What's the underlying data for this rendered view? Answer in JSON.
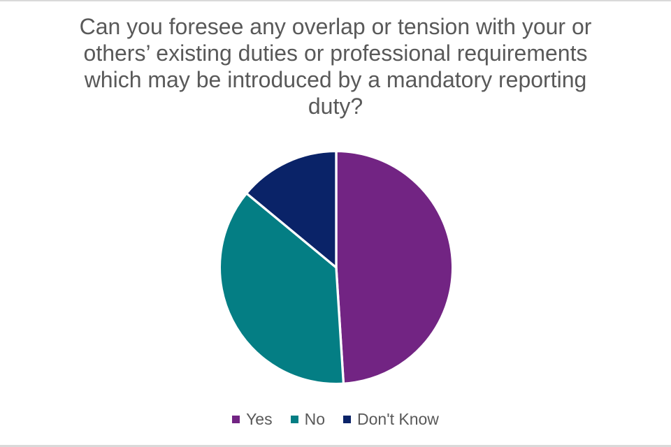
{
  "page": {
    "background": "#ffffff",
    "edge_strip_color": "#d9d9d9"
  },
  "chart_data": {
    "type": "pie",
    "title": "Can you foresee any overlap or tension with your or others’ existing duties or professional requirements which may be introduced by a mandatory reporting duty?",
    "title_lines": [
      "Can you foresee any overlap or tension with your or",
      "others’ existing duties or professional requirements",
      "which may be introduced by a mandatory reporting",
      "duty?"
    ],
    "categories": [
      "Yes",
      "No",
      "Don't Know"
    ],
    "values": [
      49,
      37,
      14
    ],
    "unit": "percent_estimated_from_angles",
    "colors": [
      "#722483",
      "#047E84",
      "#0A2368"
    ],
    "start_angle_deg": 0,
    "direction": "clockwise",
    "slice_separator_color": "#ffffff",
    "title_color": "#595959",
    "legend_text_color": "#595959",
    "legend_position": "bottom",
    "data_labels": "none"
  }
}
